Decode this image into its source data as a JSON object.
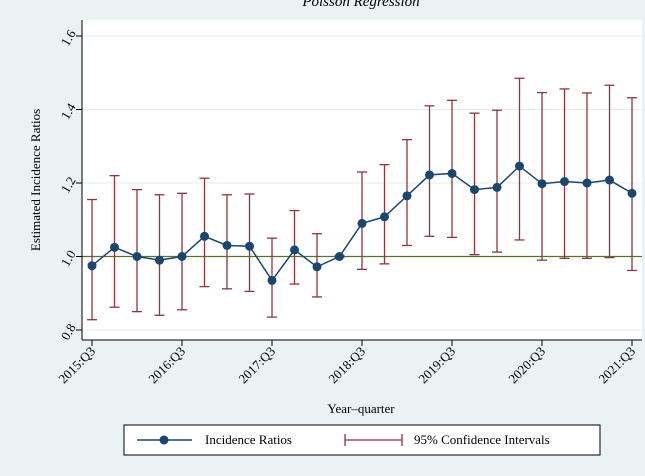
{
  "chart_data": {
    "type": "line",
    "title": "Poisson Regression",
    "xlabel": "Year–quarter",
    "ylabel": "Estimated Incidence Ratios",
    "ylim": [
      0.8,
      1.6
    ],
    "yticks": [
      0.8,
      1.0,
      1.2,
      1.4,
      1.6
    ],
    "ytick_labels": [
      "0.8",
      "1.0",
      "1.2",
      "1.4",
      "1.6"
    ],
    "x": [
      0,
      1,
      2,
      3,
      4,
      5,
      6,
      7,
      8,
      9,
      10,
      11,
      12,
      13,
      14,
      15,
      16,
      17,
      18,
      19,
      20,
      21,
      22,
      23,
      24
    ],
    "xticks": [
      0,
      4,
      8,
      12,
      16,
      20,
      24
    ],
    "xtick_labels": [
      "2015:Q3",
      "2016:Q3",
      "2017:Q3",
      "2018:Q3",
      "2019:Q3",
      "2020:Q3",
      "2021:Q3"
    ],
    "series": [
      {
        "name": "Incidence Ratios",
        "color": "#1a476f",
        "values": [
          0.975,
          1.025,
          1.0,
          0.99,
          1.0,
          1.055,
          1.03,
          1.028,
          0.935,
          1.018,
          0.972,
          1.0,
          1.09,
          1.108,
          1.165,
          1.222,
          1.226,
          1.182,
          1.188,
          1.246,
          1.198,
          1.204,
          1.2,
          1.208,
          1.172
        ]
      },
      {
        "name": "95% Confidence Intervals",
        "color": "#90353b",
        "lower": [
          0.828,
          0.862,
          0.85,
          0.84,
          0.855,
          0.918,
          0.912,
          0.905,
          0.835,
          0.925,
          0.89,
          0.998,
          0.965,
          0.98,
          1.03,
          1.055,
          1.052,
          1.005,
          1.012,
          1.045,
          0.99,
          0.995,
          0.995,
          0.997,
          0.962
        ],
        "upper": [
          1.155,
          1.22,
          1.182,
          1.168,
          1.172,
          1.213,
          1.168,
          1.17,
          1.05,
          1.125,
          1.062,
          1.002,
          1.23,
          1.25,
          1.318,
          1.41,
          1.425,
          1.39,
          1.398,
          1.485,
          1.446,
          1.456,
          1.445,
          1.466,
          1.432
        ]
      }
    ],
    "reference_line": {
      "y": 1.0,
      "color": "#55752f"
    },
    "grid": true,
    "legend": "bottom"
  }
}
